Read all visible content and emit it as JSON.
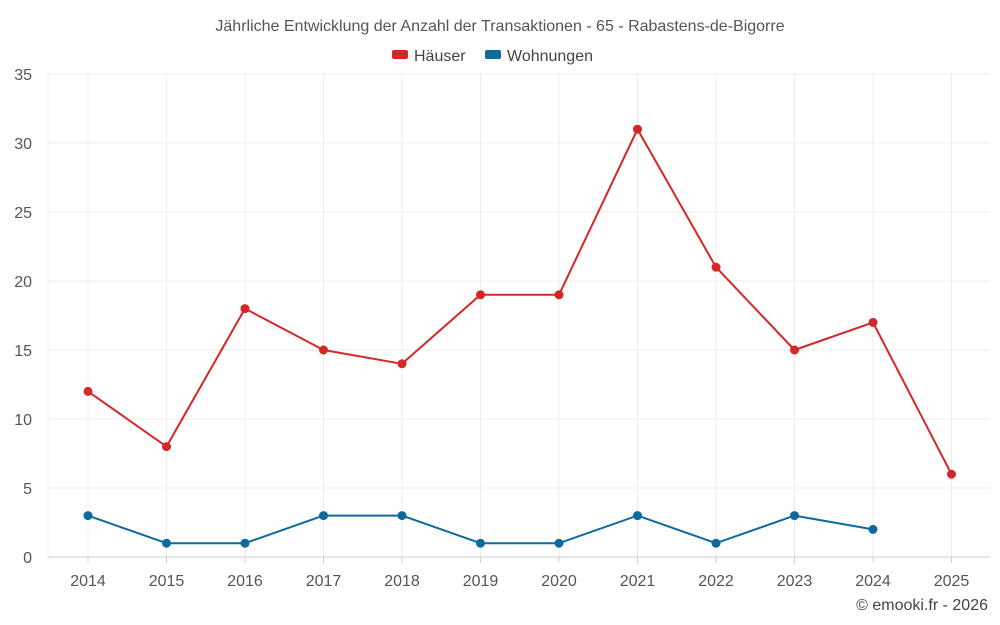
{
  "chart_data": {
    "type": "line",
    "title": "Jährliche Entwicklung der Anzahl der Transaktionen - 65 - Rabastens-de-Bigorre",
    "categories": [
      "2014",
      "2015",
      "2016",
      "2017",
      "2018",
      "2019",
      "2020",
      "2021",
      "2022",
      "2023",
      "2024",
      "2025"
    ],
    "series": [
      {
        "name": "Häuser",
        "color": "#d62728",
        "values": [
          12,
          8,
          18,
          15,
          14,
          19,
          19,
          31,
          21,
          15,
          17,
          6
        ]
      },
      {
        "name": "Wohnungen",
        "color": "#0e6a9c",
        "values": [
          3,
          1,
          1,
          3,
          3,
          1,
          1,
          3,
          1,
          3,
          2,
          null
        ]
      }
    ],
    "ylim": [
      0,
      35
    ],
    "yticks": [
      0,
      5,
      10,
      15,
      20,
      25,
      30,
      35
    ],
    "xlabel": "",
    "ylabel": "",
    "grid": true,
    "legend_position": "top-center"
  },
  "credit": "© emooki.fr - 2026"
}
